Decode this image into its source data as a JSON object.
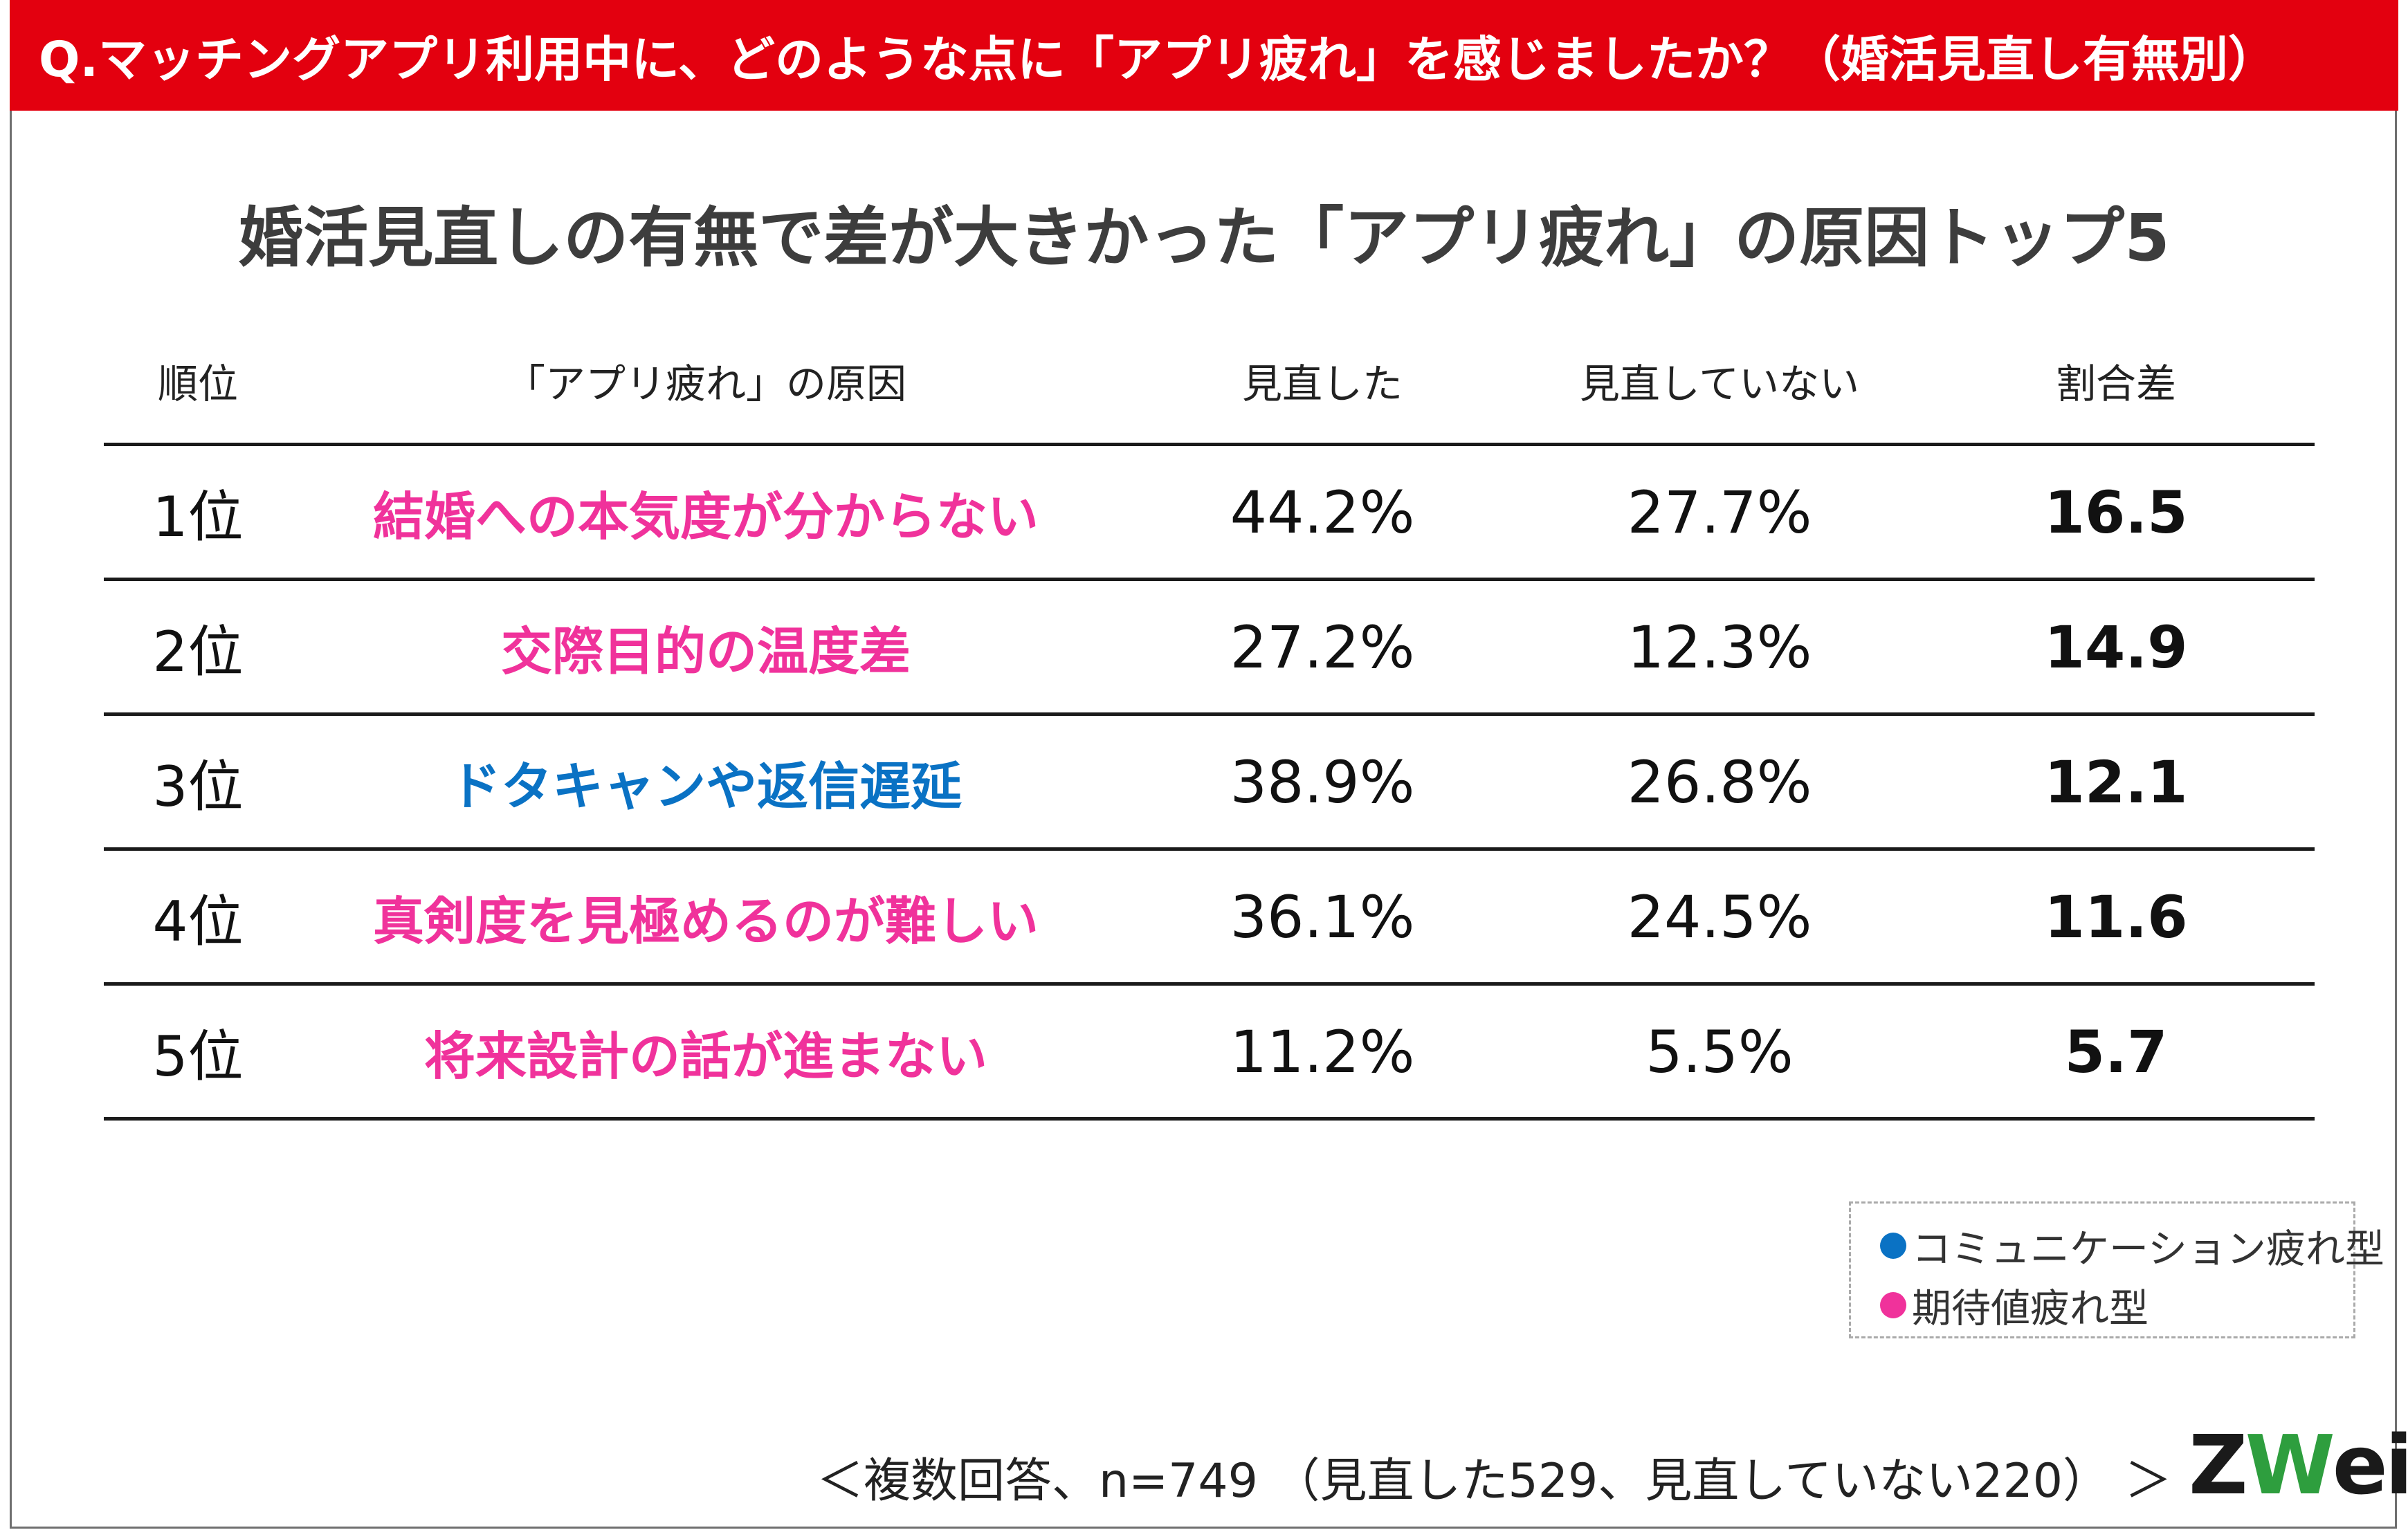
{
  "header": {
    "title": "Q.マッチングアプリ利用中に、どのような点に「アプリ疲れ」を感じましたか？（婚活見直し有無別）"
  },
  "subtitle": "婚活見直しの有無で差が大きかった「アプリ疲れ」の原因トップ5",
  "colors": {
    "header_bg": "#e3000f",
    "communication": "#0a72c4",
    "expectation": "#f0329b"
  },
  "chart_data": {
    "type": "table",
    "columns": [
      "順位",
      "「アプリ疲れ」の原因",
      "見直した",
      "見直していない",
      "割合差"
    ],
    "rows": [
      {
        "rank": "1位",
        "reason": "結婚への本気度が分からない",
        "category": "expectation",
        "revised": "44.2%",
        "not_revised": "27.7%",
        "diff": "16.5"
      },
      {
        "rank": "2位",
        "reason": "交際目的の温度差",
        "category": "expectation",
        "revised": "27.2%",
        "not_revised": "12.3%",
        "diff": "14.9"
      },
      {
        "rank": "3位",
        "reason": "ドタキャンや返信遅延",
        "category": "communication",
        "revised": "38.9%",
        "not_revised": "26.8%",
        "diff": "12.1"
      },
      {
        "rank": "4位",
        "reason": "真剣度を見極めるのが難しい",
        "category": "expectation",
        "revised": "36.1%",
        "not_revised": "24.5%",
        "diff": "11.6"
      },
      {
        "rank": "5位",
        "reason": "将来設計の話が進まない",
        "category": "expectation",
        "revised": "11.2%",
        "not_revised": "5.5%",
        "diff": "5.7"
      }
    ]
  },
  "legend": {
    "items": [
      {
        "label": "コミュニケーション疲れ型",
        "category": "communication"
      },
      {
        "label": "期待値疲れ型",
        "category": "expectation"
      }
    ]
  },
  "footnote": "＜複数回答、n=749 （見直した529、見直していない220） ＞",
  "logo": {
    "prefix": "Z",
    "mark": "W",
    "suffix": "ei"
  }
}
